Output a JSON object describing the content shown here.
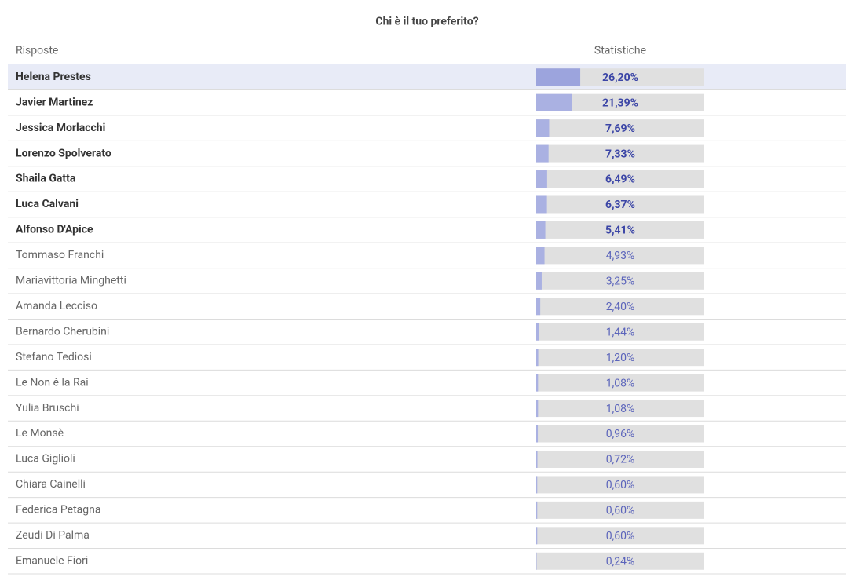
{
  "chart_data": {
    "type": "bar",
    "orientation": "horizontal",
    "title": "Chi è il tuo preferito?",
    "category_header": "Risposte",
    "value_header": "Statistiche",
    "categories": [
      "Helena Prestes",
      "Javier Martinez",
      "Jessica Morlacchi",
      "Lorenzo Spolverato",
      "Shaila Gatta",
      "Luca Calvani",
      "Alfonso D'Apice",
      "Tommaso Franchi",
      "Mariavittoria Minghetti",
      "Amanda Lecciso",
      "Bernardo Cherubini",
      "Stefano Tediosi",
      "Le Non è la Rai",
      "Yulia Bruschi",
      "Le Monsè",
      "Luca Giglioli",
      "Chiara Cainelli",
      "Federica Petagna",
      "Zeudi Di Palma",
      "Emanuele Fiori"
    ],
    "values": [
      26.2,
      21.39,
      7.69,
      7.33,
      6.49,
      6.37,
      5.41,
      4.93,
      3.25,
      2.4,
      1.44,
      1.2,
      1.08,
      1.08,
      0.96,
      0.72,
      0.6,
      0.6,
      0.6,
      0.24
    ],
    "value_labels": [
      "26,20%",
      "21,39%",
      "7,69%",
      "7,33%",
      "6,49%",
      "6,37%",
      "5,41%",
      "4,93%",
      "3,25%",
      "2,40%",
      "1,44%",
      "1,20%",
      "1,08%",
      "1,08%",
      "0,96%",
      "0,72%",
      "0,60%",
      "0,60%",
      "0,60%",
      "0,24%"
    ],
    "xlim": [
      0,
      100
    ],
    "color": "#aab1e2",
    "track_color": "#e0e0e0",
    "bold_rows": 7
  }
}
